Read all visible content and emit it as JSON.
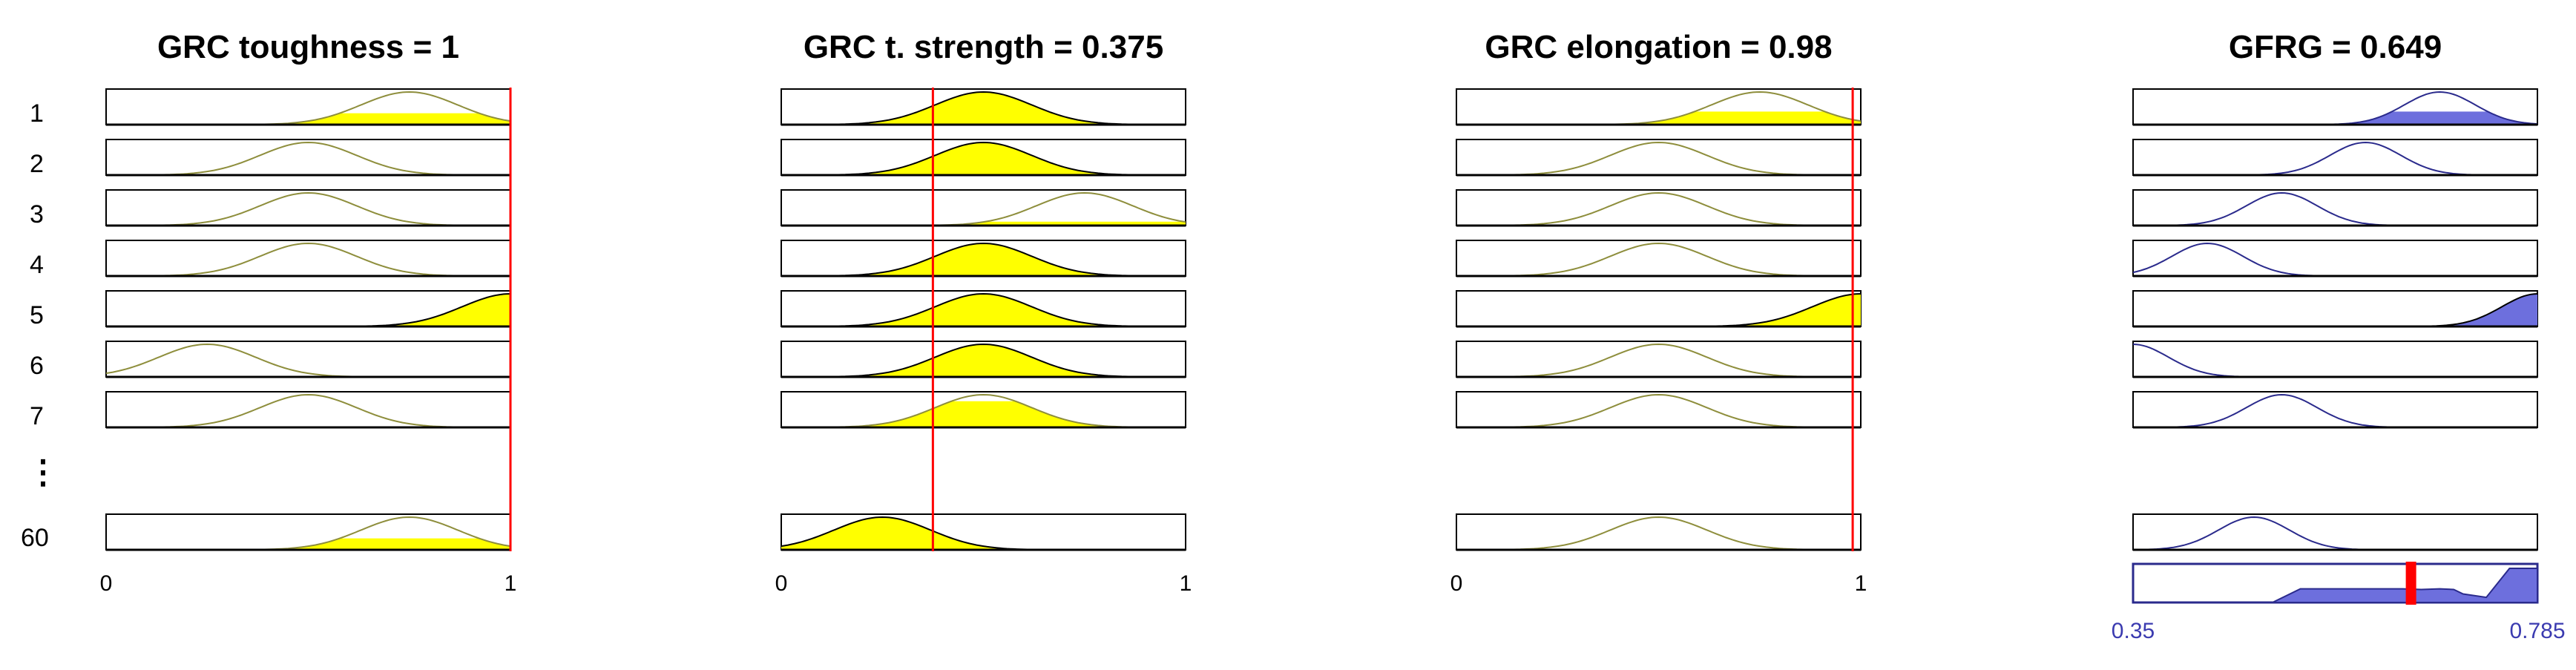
{
  "row_labels": [
    "1",
    "2",
    "3",
    "4",
    "5",
    "6",
    "7",
    "60"
  ],
  "ellipsis": "⋮",
  "colors": {
    "input_fill": "#ffff00",
    "input_curve": "#8e8e3c",
    "output_fill": "#6d6fdd",
    "output_curve": "#2a2a8c",
    "marker": "#ff0000",
    "box_edge": "#000000",
    "tick_blue": "#3b3bb0"
  },
  "inputs": [
    {
      "title": "GRC toughness  = 1",
      "value": 1,
      "range": [
        0,
        1
      ],
      "tick_labels": [
        "0",
        "1"
      ],
      "mf": [
        {
          "row": "1",
          "shape": [
            0.5,
            0.75,
            1.0
          ],
          "level": 0.35
        },
        {
          "row": "2",
          "shape": [
            0.25,
            0.5,
            0.75
          ],
          "level": 0
        },
        {
          "row": "3",
          "shape": [
            0.25,
            0.5,
            0.75
          ],
          "level": 0
        },
        {
          "row": "4",
          "shape": [
            0.25,
            0.5,
            0.75
          ],
          "level": 0
        },
        {
          "row": "5",
          "shape": [
            0.75,
            1.0,
            1.25
          ],
          "level": 1
        },
        {
          "row": "6",
          "shape": [
            0.0,
            0.25,
            0.5
          ],
          "level": 0
        },
        {
          "row": "7",
          "shape": [
            0.25,
            0.5,
            0.75
          ],
          "level": 0
        },
        {
          "row": "60",
          "shape": [
            0.5,
            0.75,
            1.0
          ],
          "level": 0.35
        }
      ]
    },
    {
      "title": "GRC t. strength  = 0.375",
      "value": 0.375,
      "range": [
        0,
        1
      ],
      "tick_labels": [
        "0",
        "1"
      ],
      "mf": [
        {
          "row": "1",
          "shape": [
            0.25,
            0.5,
            0.75
          ],
          "level": 1
        },
        {
          "row": "2",
          "shape": [
            0.25,
            0.5,
            0.75
          ],
          "level": 1
        },
        {
          "row": "3",
          "shape": [
            0.5,
            0.75,
            1.0
          ],
          "level": 0.12
        },
        {
          "row": "4",
          "shape": [
            0.25,
            0.5,
            0.75
          ],
          "level": 1
        },
        {
          "row": "5",
          "shape": [
            0.25,
            0.5,
            0.75
          ],
          "level": 1
        },
        {
          "row": "6",
          "shape": [
            0.25,
            0.5,
            0.75
          ],
          "level": 1
        },
        {
          "row": "7",
          "shape": [
            0.25,
            0.5,
            0.75
          ],
          "level": 0.8
        },
        {
          "row": "60",
          "shape": [
            0.0,
            0.25,
            0.5
          ],
          "level": 1
        }
      ]
    },
    {
      "title": "GRC elongation  = 0.98",
      "value": 0.98,
      "range": [
        0,
        1
      ],
      "tick_labels": [
        "0",
        "1"
      ],
      "mf": [
        {
          "row": "1",
          "shape": [
            0.5,
            0.75,
            1.0
          ],
          "level": 0.4
        },
        {
          "row": "2",
          "shape": [
            0.25,
            0.5,
            0.75
          ],
          "level": 0
        },
        {
          "row": "3",
          "shape": [
            0.25,
            0.5,
            0.75
          ],
          "level": 0
        },
        {
          "row": "4",
          "shape": [
            0.25,
            0.5,
            0.75
          ],
          "level": 0
        },
        {
          "row": "5",
          "shape": [
            0.75,
            1.0,
            1.25
          ],
          "level": 1
        },
        {
          "row": "6",
          "shape": [
            0.25,
            0.5,
            0.75
          ],
          "level": 0
        },
        {
          "row": "7",
          "shape": [
            0.25,
            0.5,
            0.75
          ],
          "level": 0
        },
        {
          "row": "60",
          "shape": [
            0.25,
            0.5,
            0.75
          ],
          "level": 0
        }
      ]
    }
  ],
  "output": {
    "title": "GFRG  = 0.649",
    "value": 0.649,
    "range": [
      0.35,
      0.785
    ],
    "tick_labels": [
      "0.35",
      "0.785"
    ],
    "mf": [
      {
        "row": "1",
        "shape": [
          0.6,
          0.68,
          0.76
        ],
        "level": 0.4
      },
      {
        "row": "2",
        "shape": [
          0.52,
          0.6,
          0.68
        ],
        "level": 0
      },
      {
        "row": "3",
        "shape": [
          0.43,
          0.51,
          0.59
        ],
        "level": 0
      },
      {
        "row": "4",
        "shape": [
          0.35,
          0.43,
          0.51
        ],
        "level": 0
      },
      {
        "row": "5",
        "shape": [
          0.705,
          0.785,
          0.865
        ],
        "level": 1
      },
      {
        "row": "6",
        "shape": [
          0.27,
          0.35,
          0.43
        ],
        "level": 0
      },
      {
        "row": "7",
        "shape": [
          0.43,
          0.51,
          0.59
        ],
        "level": 0
      },
      {
        "row": "60",
        "shape": [
          0.4,
          0.48,
          0.56
        ],
        "level": 0
      }
    ],
    "aggregate": {
      "x": [
        0.35,
        0.5,
        0.53,
        0.56,
        0.6,
        0.64,
        0.66,
        0.68,
        0.695,
        0.705,
        0.73,
        0.755,
        0.785
      ],
      "height": [
        0,
        0,
        0.4,
        0.4,
        0.4,
        0.4,
        0.38,
        0.4,
        0.38,
        0.25,
        0.15,
        1,
        1
      ]
    }
  }
}
